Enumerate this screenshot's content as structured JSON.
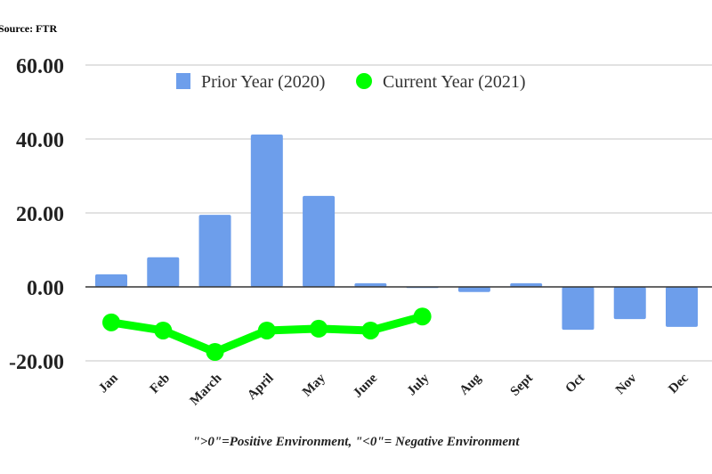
{
  "source": "Source: FTR",
  "footnote": "\">0\"=Positive Environment, \"<0\"= Negative Environment",
  "chart_data": {
    "type": "bar",
    "categories": [
      "Jan",
      "Feb",
      "March",
      "April",
      "May",
      "June",
      "July",
      "Aug",
      "Sept",
      "Oct",
      "Nov",
      "Dec"
    ],
    "series": [
      {
        "name": "Prior Year (2020)",
        "type": "bar",
        "color": "#6d9eeb",
        "values": [
          3.4,
          8.0,
          19.5,
          41.2,
          24.6,
          1.0,
          -0.3,
          -1.4,
          1.0,
          -11.6,
          -8.7,
          -10.8
        ]
      },
      {
        "name": "Current Year (2021)",
        "type": "line",
        "color": "#00ff00",
        "values": [
          -9.6,
          -11.8,
          -17.6,
          -11.8,
          -11.3,
          -11.8,
          -8.0,
          null,
          null,
          null,
          null,
          null
        ]
      }
    ],
    "yticks": [
      "60.00",
      "40.00",
      "20.00",
      "0.00",
      "-20.00"
    ],
    "ylim": [
      -20,
      60
    ],
    "grid": true,
    "legend": "top"
  }
}
